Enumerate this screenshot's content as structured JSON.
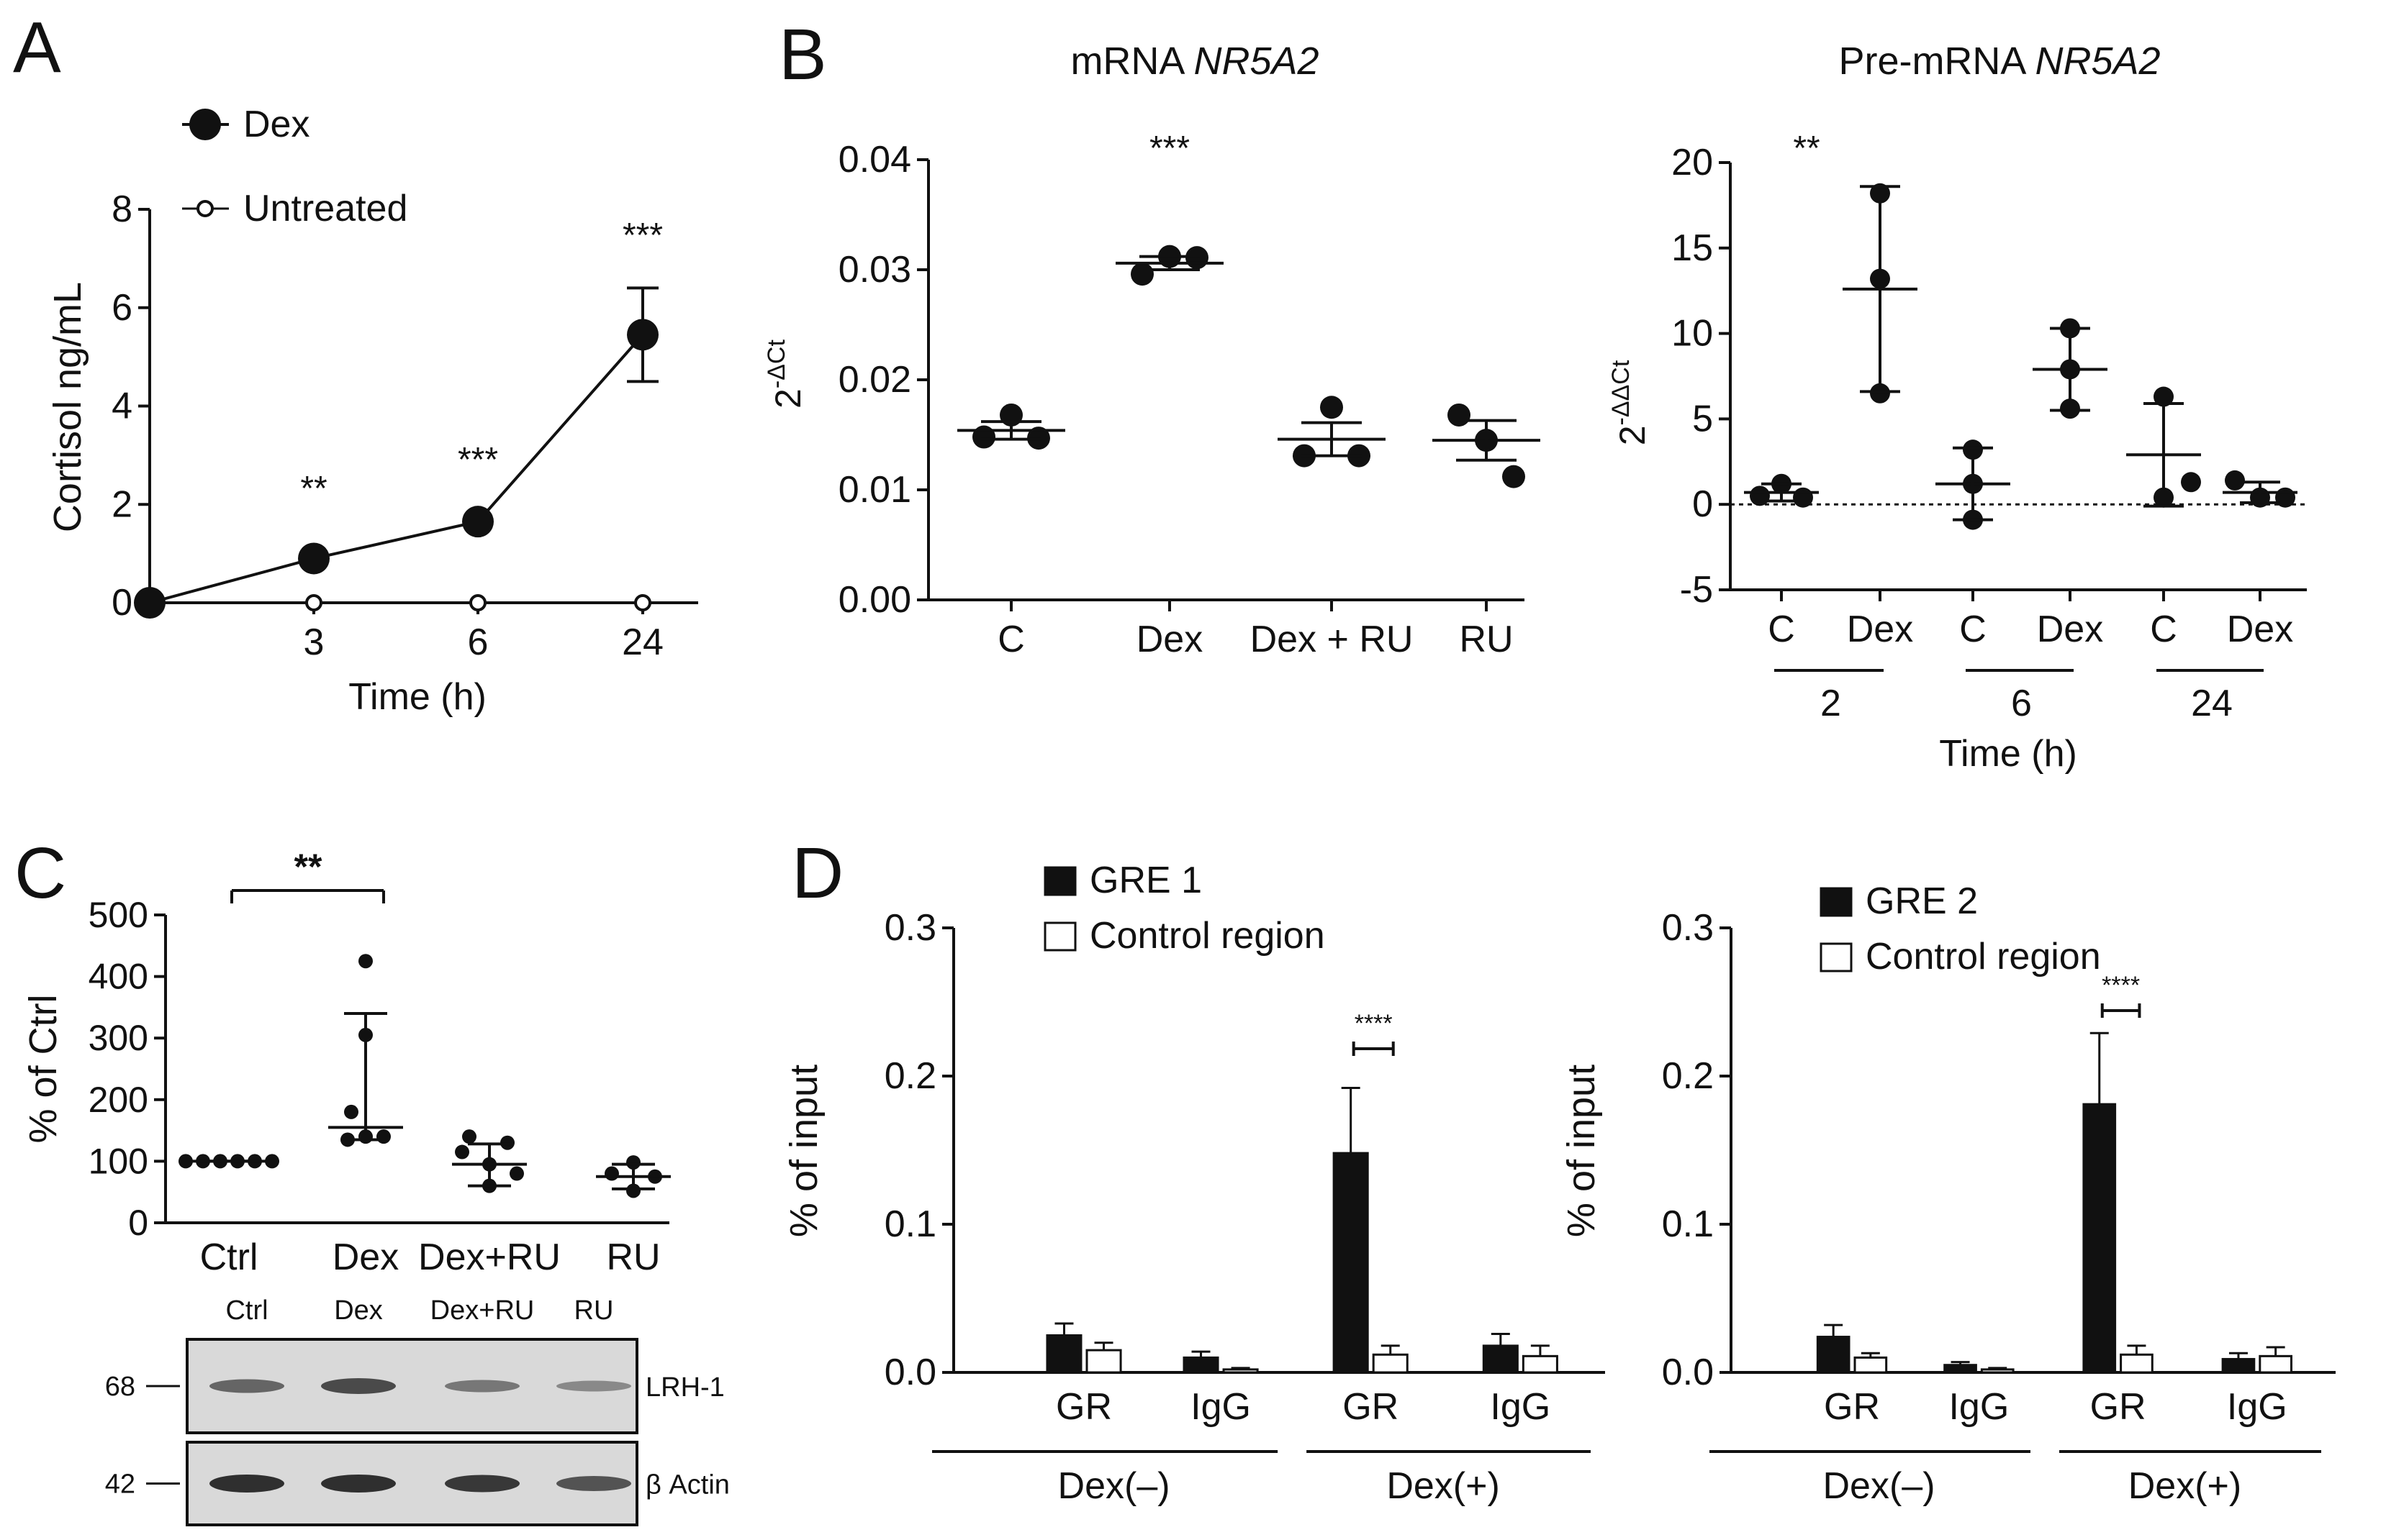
{
  "panels": {
    "A": {
      "letter": "A"
    },
    "B": {
      "letter": "B"
    },
    "C": {
      "letter": "C"
    },
    "D": {
      "letter": "D"
    }
  },
  "chart_data": [
    {
      "id": "A",
      "type": "line",
      "title": "",
      "xlabel": "Time (h)",
      "ylabel": "Cortisol ng/mL",
      "x": [
        0,
        3,
        6,
        24
      ],
      "xtick_labels": [
        "3",
        "6",
        "24"
      ],
      "ylim": [
        0,
        8
      ],
      "yticks": [
        "0",
        "2",
        "4",
        "6",
        "8"
      ],
      "legend": [
        "Dex",
        "Untreated"
      ],
      "series": [
        {
          "name": "Dex",
          "values": [
            0,
            0.9,
            1.65,
            5.45
          ],
          "error": [
            0,
            0,
            0,
            0.95
          ],
          "marker": "filled-circle"
        },
        {
          "name": "Untreated",
          "values": [
            0,
            0,
            0,
            0
          ],
          "marker": "open-circle"
        }
      ],
      "annotations": [
        "**",
        "***",
        "***"
      ]
    },
    {
      "id": "B1",
      "type": "scatter",
      "title_prefix": "mRNA ",
      "title_gene": "NR5A2",
      "xlabel": "",
      "ylabel_base": "2",
      "ylabel_sup": "-ΔCt",
      "categories": [
        "C",
        "Dex",
        "Dex + RU",
        "RU"
      ],
      "ylim": [
        0,
        0.04
      ],
      "yticks": [
        "0.00",
        "0.01",
        "0.02",
        "0.03",
        "0.04"
      ],
      "points": [
        [
          0.0148,
          0.0168,
          0.0147
        ],
        [
          0.0296,
          0.0312,
          0.0311
        ],
        [
          0.0131,
          0.0175,
          0.0131
        ],
        [
          0.0168,
          0.0145,
          0.0112
        ]
      ],
      "mean": [
        0.0154,
        0.0306,
        0.0146,
        0.0145
      ],
      "error": [
        0.0008,
        0.0006,
        0.0015,
        0.0018
      ],
      "annotations": [
        "***"
      ]
    },
    {
      "id": "B2",
      "type": "scatter",
      "title_prefix": "Pre-mRNA ",
      "title_gene": "NR5A2",
      "xlabel": "Time (h)",
      "ylabel_base": "2",
      "ylabel_sup": "-ΔΔCt",
      "categories": [
        "C",
        "Dex",
        "C",
        "Dex",
        "C",
        "Dex"
      ],
      "group_labels": [
        "2",
        "6",
        "24"
      ],
      "ylim": [
        -5,
        20
      ],
      "yticks": [
        "-5",
        "0",
        "5",
        "10",
        "15",
        "20"
      ],
      "points": [
        [
          0.5,
          1.2,
          0.4
        ],
        [
          18.2,
          13.2,
          6.5
        ],
        [
          3.2,
          1.2,
          -0.9
        ],
        [
          10.3,
          7.9,
          5.6
        ],
        [
          6.3,
          0.4,
          1.3
        ],
        [
          1.4,
          0.4,
          0.4
        ]
      ],
      "mean": [
        0.7,
        12.6,
        1.2,
        7.9,
        2.9,
        0.7
      ],
      "error": [
        0.5,
        6.0,
        2.1,
        2.4,
        3.0,
        0.6
      ],
      "annotations": [
        "**"
      ]
    },
    {
      "id": "C",
      "type": "scatter",
      "title": "",
      "xlabel": "",
      "ylabel": "% of Ctrl",
      "categories": [
        "Ctrl",
        "Dex",
        "Dex+RU",
        "RU"
      ],
      "ylim": [
        0,
        500
      ],
      "yticks": [
        "0",
        "100",
        "200",
        "300",
        "400",
        "500"
      ],
      "points": [
        [
          100,
          100,
          100,
          100,
          100,
          100
        ],
        [
          425,
          305,
          180,
          135,
          140,
          140
        ],
        [
          140,
          130,
          115,
          95,
          80,
          60
        ],
        [
          98,
          80,
          75,
          52
        ]
      ],
      "median": [
        100,
        155,
        95,
        75
      ],
      "whisker": [
        [
          100,
          100
        ],
        [
          135,
          340
        ],
        [
          60,
          128
        ],
        [
          55,
          95
        ]
      ],
      "annotations": [
        "**"
      ]
    },
    {
      "id": "D1",
      "type": "bar",
      "title": "",
      "xlabel": "",
      "ylabel": "% of input",
      "categories": [
        "GR",
        "IgG",
        "GR",
        "IgG"
      ],
      "group_labels": [
        "Dex(–)",
        "Dex(+)"
      ],
      "ylim": [
        0,
        0.3
      ],
      "yticks": [
        "0.0",
        "0.1",
        "0.2",
        "0.3"
      ],
      "legend": [
        "GRE 1",
        "Control region"
      ],
      "series": [
        {
          "name": "GRE 1",
          "values": [
            0.025,
            0.01,
            0.148,
            0.018
          ],
          "error": [
            0.008,
            0.004,
            0.044,
            0.008
          ]
        },
        {
          "name": "Control region",
          "values": [
            0.015,
            0.002,
            0.012,
            0.011
          ],
          "error": [
            0.005,
            0.001,
            0.006,
            0.007
          ]
        }
      ],
      "annotations": [
        "****"
      ]
    },
    {
      "id": "D2",
      "type": "bar",
      "title": "",
      "xlabel": "",
      "ylabel": "% of input",
      "categories": [
        "GR",
        "IgG",
        "GR",
        "IgG"
      ],
      "group_labels": [
        "Dex(–)",
        "Dex(+)"
      ],
      "ylim": [
        0,
        0.3
      ],
      "yticks": [
        "0.0",
        "0.1",
        "0.2",
        "0.3"
      ],
      "legend": [
        "GRE 2",
        "Control region"
      ],
      "series": [
        {
          "name": "GRE 2",
          "values": [
            0.024,
            0.005,
            0.181,
            0.009
          ],
          "error": [
            0.008,
            0.002,
            0.048,
            0.004
          ]
        },
        {
          "name": "Control region",
          "values": [
            0.01,
            0.002,
            0.012,
            0.011
          ],
          "error": [
            0.003,
            0.001,
            0.006,
            0.006
          ]
        }
      ],
      "annotations": [
        "****"
      ]
    }
  ],
  "blot": {
    "lane_labels": [
      "Ctrl",
      "Dex",
      "Dex+RU",
      "RU"
    ],
    "rows": [
      {
        "mw": "68",
        "protein": "LRH-1",
        "band_intensity": [
          0.55,
          0.7,
          0.45,
          0.35
        ]
      },
      {
        "mw": "42",
        "protein": "β Actin",
        "band_intensity": [
          0.85,
          0.85,
          0.8,
          0.65
        ]
      }
    ]
  }
}
